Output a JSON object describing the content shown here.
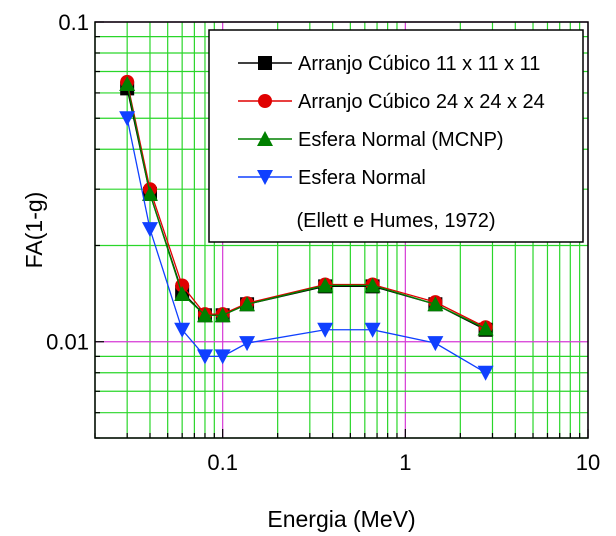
{
  "chart_data": {
    "type": "line",
    "xlabel": "Energia (MeV)",
    "ylabel": "FA(1-g)",
    "x_scale": "log",
    "y_scale": "log",
    "xlim": [
      0.02,
      10
    ],
    "ylim": [
      0.005,
      0.1
    ],
    "x_ticks": [
      {
        "value": 0.1,
        "label": "0.1"
      },
      {
        "value": 1,
        "label": "1"
      },
      {
        "value": 10,
        "label": "10"
      }
    ],
    "y_ticks": [
      {
        "value": 0.01,
        "label": "0.01"
      },
      {
        "value": 0.1,
        "label": "0.1"
      }
    ],
    "grid": true,
    "colors": {
      "minor_grid": "#2ad62a",
      "major_grid": "#d63ad6",
      "axis": "#000000",
      "legend_border": "#000000"
    },
    "legend_position": "top-right",
    "legend_note": "(Ellett e Humes, 1972)",
    "series": [
      {
        "name": "Arranjo Cúbico 11 x 11 x 11",
        "color": "#000000",
        "marker": "square",
        "x": [
          0.03,
          0.04,
          0.06,
          0.08,
          0.1,
          0.136,
          0.364,
          0.662,
          1.46,
          2.75
        ],
        "y": [
          0.062,
          0.029,
          0.0143,
          0.0121,
          0.0121,
          0.0131,
          0.0149,
          0.0149,
          0.0131,
          0.0109
        ]
      },
      {
        "name": "Arranjo Cúbico 24 x 24 x 24",
        "color": "#e00000",
        "marker": "circle",
        "x": [
          0.03,
          0.04,
          0.06,
          0.08,
          0.1,
          0.136,
          0.364,
          0.662,
          1.46,
          2.75
        ],
        "y": [
          0.065,
          0.03,
          0.015,
          0.0122,
          0.0122,
          0.0132,
          0.0151,
          0.0151,
          0.0133,
          0.0111
        ]
      },
      {
        "name": "Esfera Normal (MCNP)",
        "color": "#008000",
        "marker": "triangle-up",
        "x": [
          0.03,
          0.04,
          0.06,
          0.08,
          0.1,
          0.136,
          0.364,
          0.662,
          1.46,
          2.75
        ],
        "y": [
          0.064,
          0.029,
          0.0141,
          0.0121,
          0.0121,
          0.0131,
          0.015,
          0.015,
          0.0131,
          0.011
        ]
      },
      {
        "name": "Esfera Normal",
        "color": "#1040ff",
        "marker": "triangle-down",
        "x": [
          0.03,
          0.04,
          0.06,
          0.08,
          0.1,
          0.136,
          0.364,
          0.662,
          1.46,
          2.75
        ],
        "y": [
          0.05,
          0.0225,
          0.0109,
          0.009,
          0.009,
          0.0099,
          0.0109,
          0.0109,
          0.0099,
          0.008
        ]
      }
    ]
  }
}
